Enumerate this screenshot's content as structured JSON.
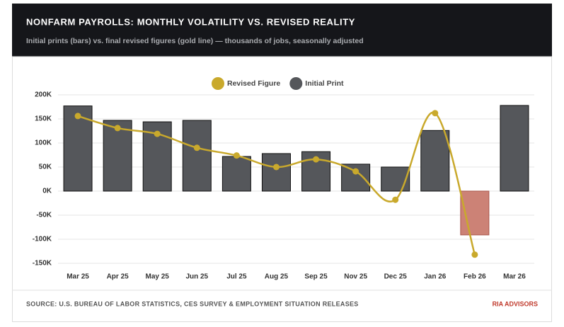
{
  "chart_data": {
    "type": "bar",
    "title": "NONFARM PAYROLLS: MONTHLY VOLATILITY VS. REVISED REALITY",
    "subtitle": "Initial prints (bars) vs. final revised figures (gold line) — thousands of jobs, seasonally adjusted",
    "source": "SOURCE: U.S. BUREAU OF LABOR STATISTICS, CES SURVEY & EMPLOYMENT SITUATION RELEASES",
    "brand": "RIA ADVISORS",
    "categories": [
      "Mar 25",
      "Apr 25",
      "May 25",
      "Jun 25",
      "Jul 25",
      "Aug 25",
      "Sep 25",
      "Nov 25",
      "Dec 25",
      "Jan 26",
      "Feb 26",
      "Mar 26"
    ],
    "series": [
      {
        "name": "Revised Figure",
        "type": "line",
        "color": "#c9a92c",
        "values": [
          156,
          131,
          119,
          90,
          74,
          50,
          66,
          41,
          -18,
          162,
          -132,
          null
        ]
      },
      {
        "name": "Initial Print",
        "type": "bar",
        "color": "#55575b",
        "negative_color": "#cc8276",
        "values": [
          177,
          147,
          144,
          147,
          72,
          78,
          82,
          56,
          50,
          126,
          -91,
          178
        ]
      }
    ],
    "ylim": [
      -150,
      200
    ],
    "yticks": [
      {
        "value": 200,
        "label": "200K"
      },
      {
        "value": 150,
        "label": "150K"
      },
      {
        "value": 100,
        "label": "100K"
      },
      {
        "value": 50,
        "label": "50K"
      },
      {
        "value": 0,
        "label": "0K"
      },
      {
        "value": -50,
        "label": "-50K"
      },
      {
        "value": -100,
        "label": "-100K"
      },
      {
        "value": -150,
        "label": "-150K"
      }
    ],
    "grid": true
  }
}
